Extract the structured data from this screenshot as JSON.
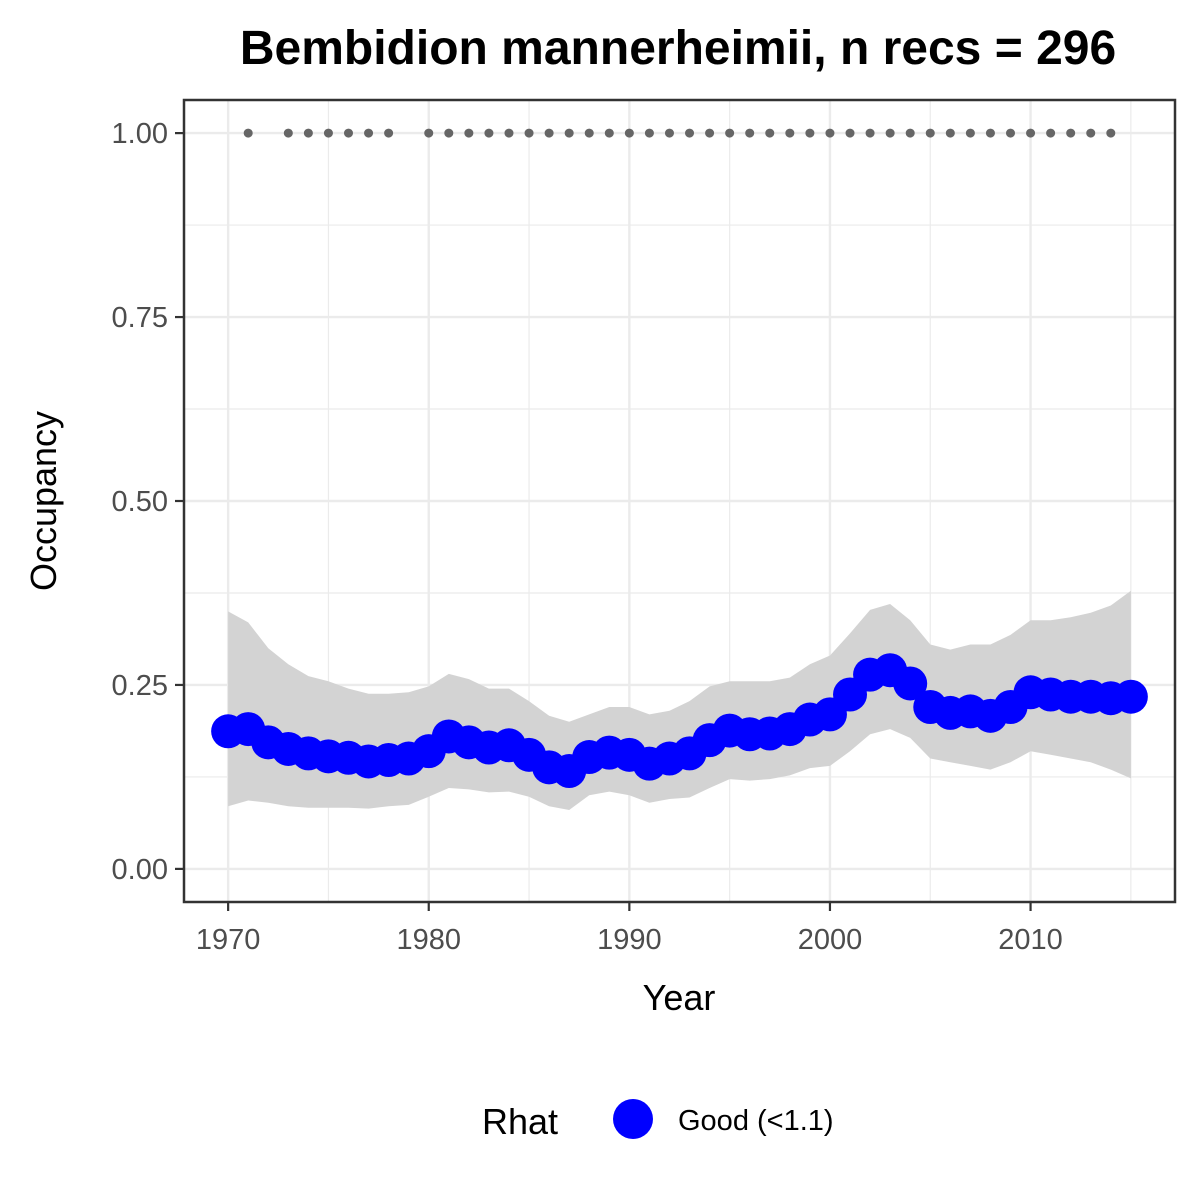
{
  "chart_data": {
    "type": "line",
    "title": "Bembidion mannerheimii, n recs = 296",
    "xlabel": "Year",
    "ylabel": "Occupancy",
    "xlim": [
      1967.8,
      2017.2
    ],
    "ylim": [
      -0.045,
      1.045
    ],
    "x_ticks": [
      1970,
      1980,
      1990,
      2000,
      2010
    ],
    "x_tick_labels": [
      "1970",
      "1980",
      "1990",
      "2000",
      "2010"
    ],
    "y_ticks": [
      0,
      0.25,
      0.5,
      0.75,
      1.0
    ],
    "y_tick_labels": [
      "0.00",
      "0.25",
      "0.50",
      "0.75",
      "1.00"
    ],
    "grid": true,
    "x": [
      1970,
      1971,
      1972,
      1973,
      1974,
      1975,
      1976,
      1977,
      1978,
      1979,
      1980,
      1981,
      1982,
      1983,
      1984,
      1985,
      1986,
      1987,
      1988,
      1989,
      1990,
      1991,
      1992,
      1993,
      1994,
      1995,
      1996,
      1997,
      1998,
      1999,
      2000,
      2001,
      2002,
      2003,
      2004,
      2005,
      2006,
      2007,
      2008,
      2009,
      2010,
      2011,
      2012,
      2013,
      2014,
      2015
    ],
    "series": [
      {
        "values": [
          0.187,
          0.19,
          0.172,
          0.163,
          0.157,
          0.153,
          0.151,
          0.146,
          0.148,
          0.15,
          0.16,
          0.18,
          0.172,
          0.165,
          0.168,
          0.155,
          0.138,
          0.133,
          0.152,
          0.158,
          0.155,
          0.143,
          0.15,
          0.157,
          0.175,
          0.188,
          0.183,
          0.184,
          0.19,
          0.203,
          0.21,
          0.237,
          0.264,
          0.27,
          0.252,
          0.22,
          0.212,
          0.214,
          0.208,
          0.22,
          0.24,
          0.237,
          0.234,
          0.234,
          0.232,
          0.234
        ],
        "lower": [
          0.085,
          0.093,
          0.09,
          0.085,
          0.083,
          0.083,
          0.083,
          0.082,
          0.085,
          0.087,
          0.098,
          0.11,
          0.108,
          0.104,
          0.105,
          0.098,
          0.085,
          0.08,
          0.1,
          0.105,
          0.1,
          0.09,
          0.095,
          0.097,
          0.11,
          0.122,
          0.12,
          0.122,
          0.127,
          0.137,
          0.14,
          0.16,
          0.183,
          0.19,
          0.178,
          0.15,
          0.145,
          0.14,
          0.135,
          0.145,
          0.16,
          0.155,
          0.15,
          0.145,
          0.135,
          0.123
        ],
        "upper": [
          0.35,
          0.335,
          0.3,
          0.278,
          0.262,
          0.255,
          0.245,
          0.238,
          0.238,
          0.24,
          0.248,
          0.265,
          0.258,
          0.245,
          0.245,
          0.228,
          0.208,
          0.2,
          0.21,
          0.22,
          0.22,
          0.21,
          0.215,
          0.228,
          0.248,
          0.255,
          0.255,
          0.255,
          0.26,
          0.278,
          0.29,
          0.32,
          0.352,
          0.36,
          0.338,
          0.305,
          0.298,
          0.305,
          0.305,
          0.318,
          0.338,
          0.338,
          0.342,
          0.348,
          0.358,
          0.378
        ],
        "color": "#0000ff",
        "ribbon_color": "#d3d3d3"
      }
    ],
    "detection_years": [
      1971,
      1973,
      1974,
      1975,
      1976,
      1977,
      1978,
      1980,
      1981,
      1982,
      1983,
      1984,
      1985,
      1986,
      1987,
      1988,
      1989,
      1990,
      1991,
      1992,
      1993,
      1994,
      1995,
      1996,
      1997,
      1998,
      1999,
      2000,
      2001,
      2002,
      2003,
      2004,
      2005,
      2006,
      2007,
      2008,
      2009,
      2010,
      2011,
      2012,
      2013,
      2014
    ],
    "detection_value": 1.0,
    "detection_color": "#666666",
    "legend": {
      "title": "Rhat",
      "items": [
        {
          "label": "Good (<1.1)",
          "color": "#0000ff"
        }
      ],
      "placement": "bottom"
    }
  }
}
